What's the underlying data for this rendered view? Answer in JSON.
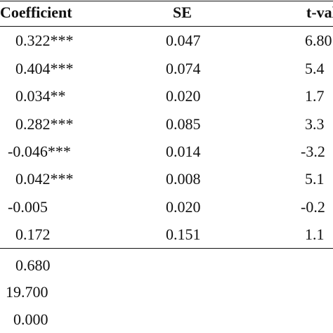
{
  "table": {
    "header": [
      "Coefficient",
      "SE",
      "t-val"
    ],
    "rows": [
      [
        "0.322***",
        "0.047",
        "6.80"
      ],
      [
        "0.404***",
        "0.074",
        "5.4"
      ],
      [
        "0.034**",
        "0.020",
        "1.7"
      ],
      [
        "0.282***",
        "0.085",
        "3.3"
      ],
      [
        "-0.046***",
        "0.014",
        "-3.2"
      ],
      [
        "0.042***",
        "0.008",
        "5.1"
      ],
      [
        "-0.005",
        "0.020",
        "-0.2"
      ],
      [
        "0.172",
        "0.151",
        "1.1"
      ]
    ],
    "stats": [
      "0.680",
      "19.700",
      "0.000"
    ]
  }
}
